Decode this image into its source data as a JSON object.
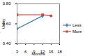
{
  "chart_data": {
    "type": "line",
    "x_label": "Months",
    "y_label": "Utility",
    "x": [
      3,
      12,
      15
    ],
    "series": [
      {
        "name": "Less",
        "color": "#4a7ebb",
        "marker": "diamond",
        "values": [
          0.55,
          0.68,
          null
        ]
      },
      {
        "name": "More",
        "color": "#be4b48",
        "marker": "square",
        "values": [
          0.69,
          0.69,
          0.68
        ]
      }
    ],
    "xlim": [
      3,
      18
    ],
    "xticks": [
      3,
      6,
      9,
      12,
      15,
      18
    ],
    "ylim": [
      0.4,
      0.8
    ],
    "yticks": [
      0.4,
      0.6,
      0.8
    ],
    "grid": false,
    "legend": "right"
  }
}
